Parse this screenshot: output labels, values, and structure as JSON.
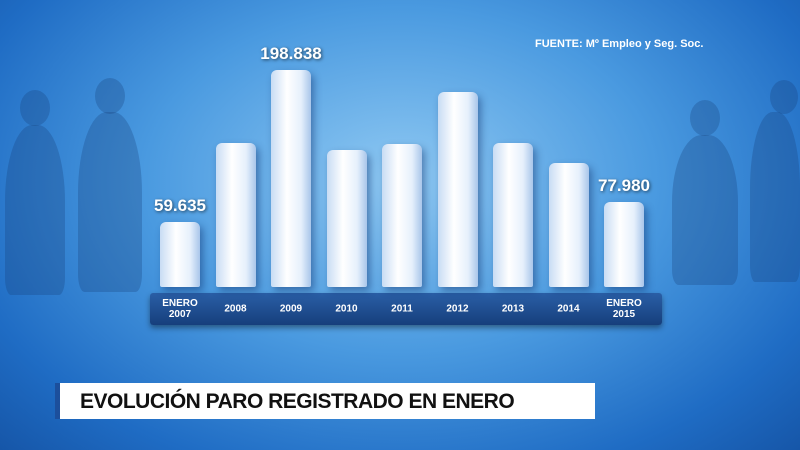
{
  "chart_data": {
    "type": "bar",
    "title": "EVOLUCIÓN PARO REGISTRADO EN ENERO",
    "source": "FUENTE: Mº Empleo y Seg. Soc.",
    "categories": [
      "ENERO 2007",
      "2008",
      "2009",
      "2010",
      "2011",
      "2012",
      "2013",
      "2014",
      "ENERO 2015"
    ],
    "values": [
      59635,
      132000,
      198838,
      125600,
      131000,
      178700,
      132000,
      113700,
      77980
    ],
    "value_labels": [
      "59.635",
      null,
      "198.838",
      null,
      null,
      null,
      null,
      null,
      "77.980"
    ],
    "color": "#f4f8ff"
  }
}
